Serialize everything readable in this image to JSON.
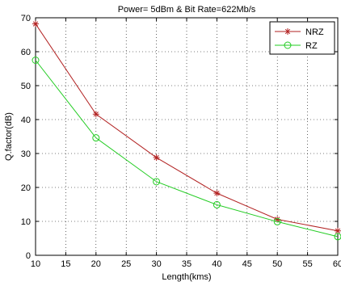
{
  "chart_data": {
    "type": "line",
    "title": "Power= 5dBm & Bit Rate=622Mb/s",
    "xlabel": "Length(kms)",
    "ylabel": "Q.factor(dB)",
    "xlim": [
      10,
      60
    ],
    "ylim": [
      0,
      70
    ],
    "xticks": [
      10,
      15,
      20,
      25,
      30,
      35,
      40,
      45,
      50,
      55,
      60
    ],
    "yticks": [
      0,
      10,
      20,
      30,
      40,
      50,
      60,
      70
    ],
    "grid": true,
    "legend_position": "top-right",
    "x": [
      10,
      20,
      30,
      40,
      50,
      60
    ],
    "series": [
      {
        "name": "NRZ",
        "color": "#b22222",
        "marker": "star",
        "values": [
          68.2,
          41.6,
          28.8,
          18.3,
          10.6,
          7.2
        ]
      },
      {
        "name": "RZ",
        "color": "#22cc22",
        "marker": "circle",
        "values": [
          57.5,
          34.6,
          21.7,
          14.9,
          9.9,
          5.5
        ]
      }
    ]
  }
}
